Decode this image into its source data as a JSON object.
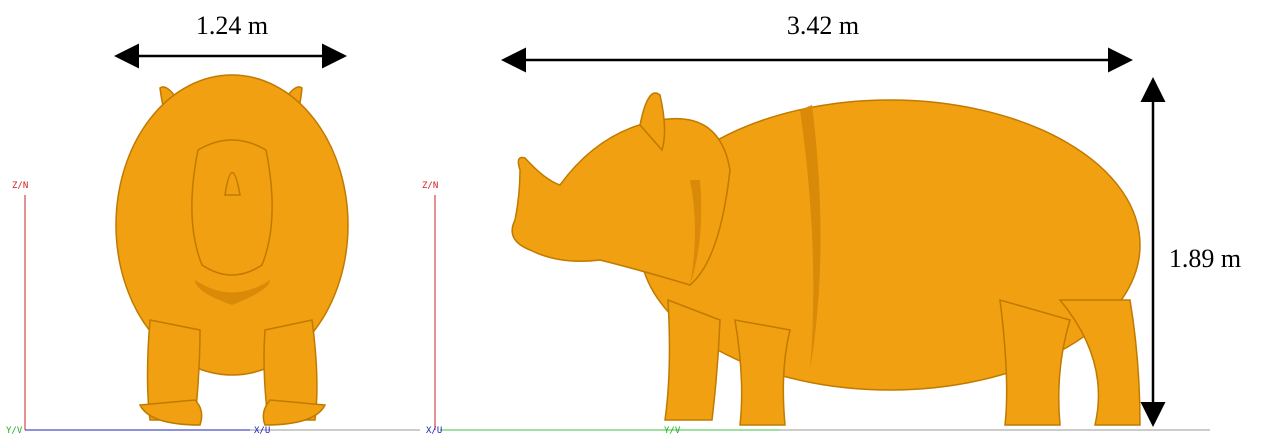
{
  "front_view": {
    "width_label": "1.24 m",
    "axis_labels": {
      "vertical": "Z/N",
      "horizontal_left": "Y/V",
      "horizontal_right": "X/U"
    }
  },
  "side_view": {
    "length_label": "3.42 m",
    "height_label": "1.89 m",
    "axis_labels": {
      "vertical": "Z/N",
      "horizontal_left": "X/U",
      "horizontal_right": "Y/V"
    }
  }
}
